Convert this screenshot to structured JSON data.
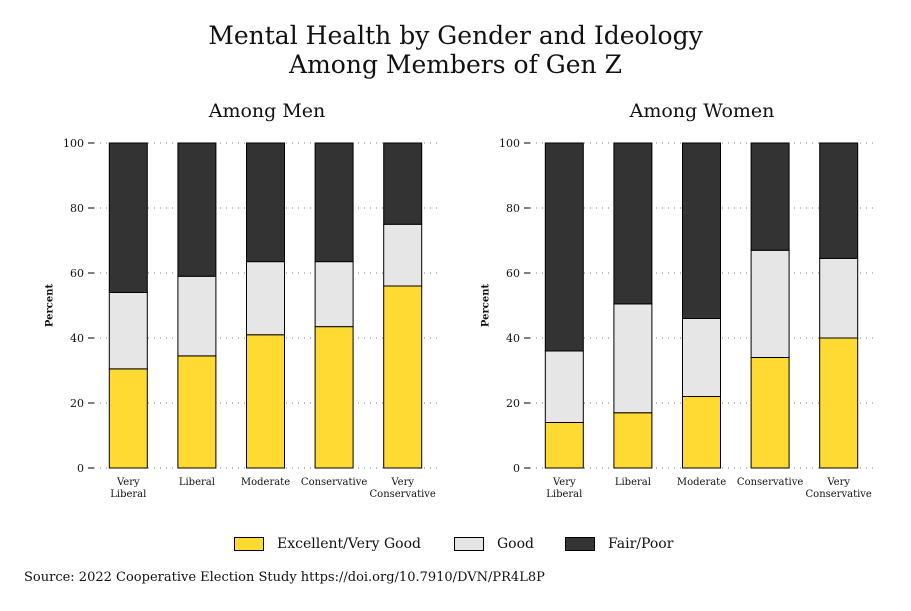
{
  "title_lines": [
    "Mental Health by Gender and Ideology",
    "Among Members of Gen Z"
  ],
  "source": "Source: 2022 Cooperative Election Study https://doi.org/10.7910/DVN/PR4L8P",
  "colors": {
    "excellent": "#FFDA33",
    "good": "#E6E6E6",
    "fair": "#333333"
  },
  "chart_data": [
    {
      "type": "bar",
      "stacked": true,
      "title": "Among Men",
      "ylabel": "Percent",
      "xlabel": "",
      "ylim": [
        0,
        100
      ],
      "yticks": [
        0,
        20,
        40,
        60,
        80,
        100
      ],
      "grid": "dotted horizontal",
      "categories": [
        [
          "Very",
          "Liberal"
        ],
        [
          "Liberal"
        ],
        [
          "Moderate"
        ],
        [
          "Conservative"
        ],
        [
          "Very",
          "Conservative"
        ]
      ],
      "series": [
        {
          "name": "Excellent/Very Good",
          "values": [
            30.5,
            34.5,
            41,
            43.5,
            56
          ]
        },
        {
          "name": "Good",
          "values": [
            23.5,
            24.5,
            22.5,
            20,
            19
          ]
        },
        {
          "name": "Fair/Poor",
          "values": [
            46,
            41,
            36.5,
            36.5,
            25
          ]
        }
      ]
    },
    {
      "type": "bar",
      "stacked": true,
      "title": "Among Women",
      "ylabel": "Percent",
      "xlabel": "",
      "ylim": [
        0,
        100
      ],
      "yticks": [
        0,
        20,
        40,
        60,
        80,
        100
      ],
      "grid": "dotted horizontal",
      "categories": [
        [
          "Very",
          "Liberal"
        ],
        [
          "Liberal"
        ],
        [
          "Moderate"
        ],
        [
          "Conservative"
        ],
        [
          "Very",
          "Conservative"
        ]
      ],
      "series": [
        {
          "name": "Excellent/Very Good",
          "values": [
            14,
            17,
            22,
            34,
            40
          ]
        },
        {
          "name": "Good",
          "values": [
            22,
            33.5,
            24,
            33,
            24.5
          ]
        },
        {
          "name": "Fair/Poor",
          "values": [
            64,
            49.5,
            54,
            33,
            35.5
          ]
        }
      ]
    }
  ],
  "legend": [
    {
      "label": "Excellent/Very Good",
      "color": "#FFDA33"
    },
    {
      "label": "Good",
      "color": "#E6E6E6"
    },
    {
      "label": "Fair/Poor",
      "color": "#333333"
    }
  ]
}
